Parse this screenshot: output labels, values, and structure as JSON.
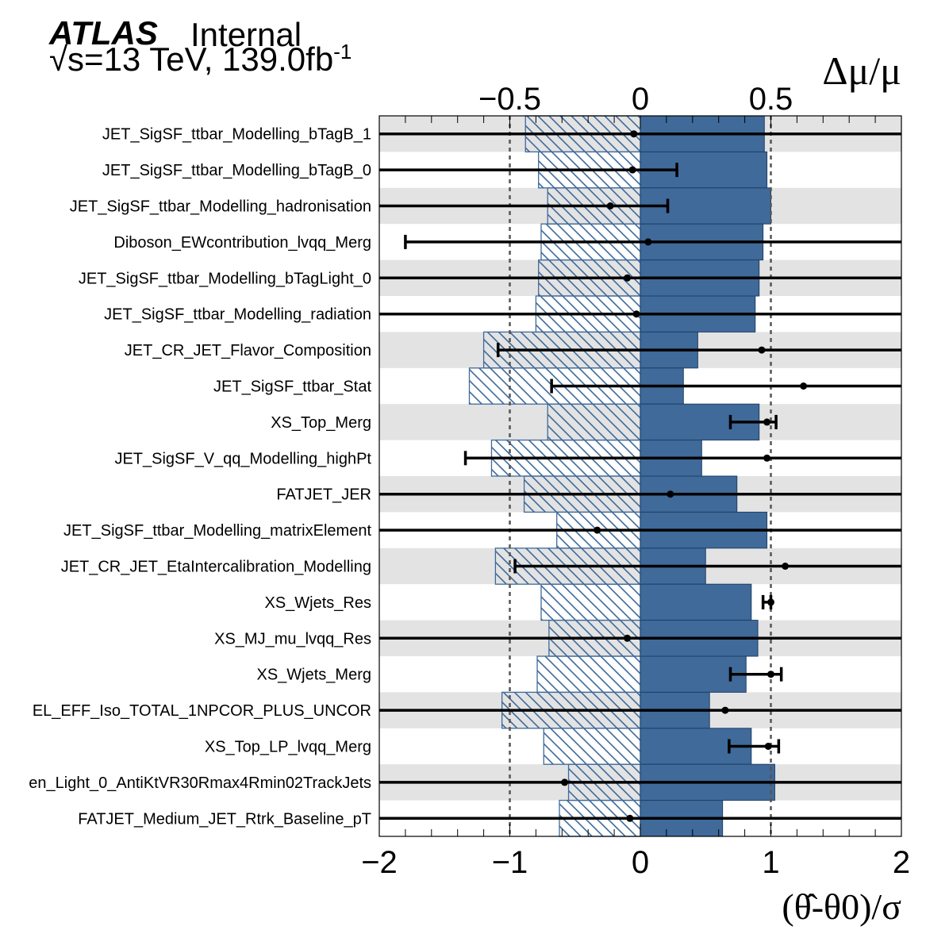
{
  "header": {
    "logo": "ATLAS",
    "status": "Internal",
    "energy": "√s=13 TeV, 139.0fb",
    "lumi_sup": "-1"
  },
  "chart_data": {
    "type": "ranking",
    "top_axis": {
      "label": "Δμ/μ",
      "ticks": [
        -0.5,
        0,
        0.5
      ],
      "tick_labels": [
        "−0.5",
        "0",
        "0.5"
      ],
      "range": [
        -1.0,
        1.0
      ]
    },
    "bottom_axis": {
      "label": "(θ̂-θ0)/σ",
      "ticks": [
        -2,
        -1,
        0,
        1,
        2
      ],
      "tick_labels": [
        "−2",
        "−1",
        "0",
        "1",
        "2"
      ],
      "range": [
        -2,
        2
      ]
    },
    "reference_lines": [
      -1,
      1
    ],
    "colors": {
      "postfit": "#3f6a9a",
      "hatch": "#3f6a9a",
      "band": "#e3e3e3"
    },
    "parameters": [
      {
        "name": "JET_SigSF_ttbar_Modelling_bTagB_1",
        "impact_down": -0.44,
        "impact_up": 0.475,
        "theta": -0.05,
        "err_lo": -2.0,
        "err_hi": 2.0
      },
      {
        "name": "JET_SigSF_ttbar_Modelling_bTagB_0",
        "impact_down": -0.39,
        "impact_up": 0.485,
        "theta": -0.06,
        "err_lo": -2.0,
        "err_hi": 0.28
      },
      {
        "name": "JET_SigSF_ttbar_Modelling_hadronisation",
        "impact_down": -0.355,
        "impact_up": 0.5,
        "theta": -0.23,
        "err_lo": -2.0,
        "err_hi": 0.21
      },
      {
        "name": "Diboson_EWcontribution_lvqq_Merg",
        "impact_down": -0.38,
        "impact_up": 0.47,
        "theta": 0.06,
        "err_lo": -1.8,
        "err_hi": 2.0
      },
      {
        "name": "JET_SigSF_ttbar_Modelling_bTagLight_0",
        "impact_down": -0.39,
        "impact_up": 0.455,
        "theta": -0.1,
        "err_lo": -2.0,
        "err_hi": 2.0
      },
      {
        "name": "JET_SigSF_ttbar_Modelling_radiation",
        "impact_down": -0.4,
        "impact_up": 0.44,
        "theta": -0.03,
        "err_lo": -2.0,
        "err_hi": 2.0
      },
      {
        "name": "JET_CR_JET_Flavor_Composition",
        "impact_down": -0.6,
        "impact_up": 0.22,
        "theta": 0.93,
        "err_lo": -1.09,
        "err_hi": 2.0
      },
      {
        "name": "JET_SigSF_ttbar_Stat",
        "impact_down": -0.655,
        "impact_up": 0.165,
        "theta": 1.25,
        "err_lo": -0.68,
        "err_hi": 2.0
      },
      {
        "name": "XS_Top_Merg",
        "impact_down": -0.355,
        "impact_up": 0.455,
        "theta": 0.97,
        "err_lo": 0.69,
        "err_hi": 1.04
      },
      {
        "name": "JET_SigSF_V_qq_Modelling_highPt",
        "impact_down": -0.57,
        "impact_up": 0.235,
        "theta": 0.97,
        "err_lo": -1.34,
        "err_hi": 2.0
      },
      {
        "name": "FATJET_JER",
        "impact_down": -0.445,
        "impact_up": 0.37,
        "theta": 0.23,
        "err_lo": -2.0,
        "err_hi": 2.0
      },
      {
        "name": "JET_SigSF_ttbar_Modelling_matrixElement",
        "impact_down": -0.32,
        "impact_up": 0.485,
        "theta": -0.33,
        "err_lo": -2.0,
        "err_hi": 2.0
      },
      {
        "name": "JET_CR_JET_EtaIntercalibration_Modelling",
        "impact_down": -0.555,
        "impact_up": 0.25,
        "theta": 1.11,
        "err_lo": -0.96,
        "err_hi": 2.0
      },
      {
        "name": "XS_Wjets_Res",
        "impact_down": -0.38,
        "impact_up": 0.425,
        "theta": 1.0,
        "err_lo": 0.94,
        "err_hi": 1.0
      },
      {
        "name": "XS_MJ_mu_lvqq_Res",
        "impact_down": -0.35,
        "impact_up": 0.45,
        "theta": -0.1,
        "err_lo": -2.0,
        "err_hi": 2.0
      },
      {
        "name": "XS_Wjets_Merg",
        "impact_down": -0.395,
        "impact_up": 0.405,
        "theta": 1.0,
        "err_lo": 0.69,
        "err_hi": 1.08
      },
      {
        "name": "EL_EFF_Iso_TOTAL_1NPCOR_PLUS_UNCOR",
        "impact_down": -0.53,
        "impact_up": 0.265,
        "theta": 0.65,
        "err_lo": -2.0,
        "err_hi": 2.0
      },
      {
        "name": "XS_Top_LP_lvqq_Merg",
        "impact_down": -0.37,
        "impact_up": 0.425,
        "theta": 0.98,
        "err_lo": 0.68,
        "err_hi": 1.06
      },
      {
        "name": "en_Light_0_AntiKtVR30Rmax4Rmin02TrackJets",
        "impact_down": -0.275,
        "impact_up": 0.515,
        "theta": -0.58,
        "err_lo": -2.0,
        "err_hi": 2.0
      },
      {
        "name": "FATJET_Medium_JET_Rtrk_Baseline_pT",
        "impact_down": -0.31,
        "impact_up": 0.315,
        "theta": -0.08,
        "err_lo": -2.0,
        "err_hi": 2.0
      }
    ]
  }
}
